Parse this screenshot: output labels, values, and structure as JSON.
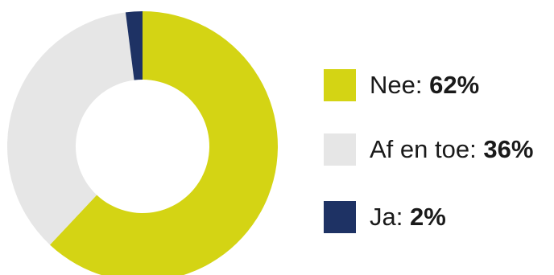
{
  "chart_data": {
    "type": "pie",
    "donut": true,
    "slices": [
      {
        "label": "Nee",
        "value": 62,
        "display": "62%",
        "color": "#d4d414"
      },
      {
        "label": "Af en toe",
        "value": 36,
        "display": "36%",
        "color": "#e6e6e6"
      },
      {
        "label": "Ja",
        "value": 2,
        "display": "2%",
        "color": "#1e3264"
      }
    ],
    "legend_position": "right"
  },
  "legend": {
    "items": [
      {
        "label": "Nee:",
        "value": "62%"
      },
      {
        "label": "Af en toe:",
        "value": "36%"
      },
      {
        "label": "Ja:",
        "value": "2%"
      }
    ]
  }
}
